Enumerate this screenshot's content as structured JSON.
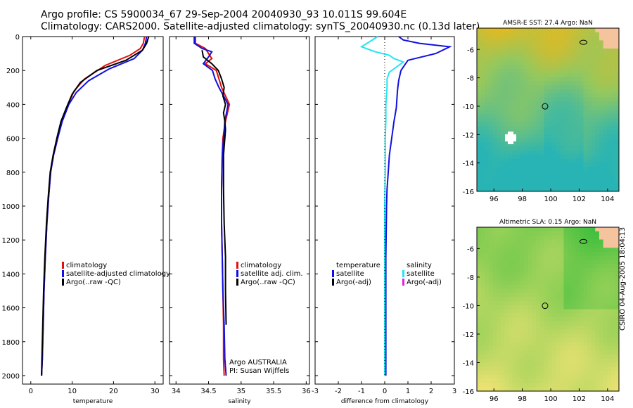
{
  "title_line1": "Argo profile: CS 5900034_67 29-Sep-2004 20040930_93 10.011S 99.604E",
  "title_line2": "Climatology: CARS2000. Satellite-adjusted climatology: synTS_20040930.nc (0.13d later)",
  "stamp": "CSIRO 04-Aug-2005 18:04:13",
  "colors": {
    "climatology": "#e01010",
    "satellite": "#1010e0",
    "argo": "#000000",
    "sal_diff": "#22e6f0",
    "argo_adj_sal": "#e020e0"
  },
  "chart_data": [
    {
      "type": "line",
      "name": "temperature",
      "xlabel": "temperature",
      "xlim": [
        -2,
        32
      ],
      "ylim": [
        0,
        2050
      ],
      "xticks": [
        0,
        10,
        20,
        30
      ],
      "yticks": [
        0,
        200,
        400,
        600,
        800,
        1000,
        1200,
        1400,
        1600,
        1800,
        2000
      ],
      "legend": [
        "climatology",
        "satellite-adjusted climatology",
        "Argo(..raw -QC)"
      ],
      "series": [
        {
          "name": "climatology",
          "color": "climatology",
          "x": [
            27.5,
            27.2,
            26.5,
            24,
            18,
            13,
            10.5,
            9,
            7.5,
            6.5,
            5.5,
            4.8,
            4.3,
            3.9,
            3.5,
            3.2,
            3.0,
            2.8,
            2.6
          ],
          "y": [
            0,
            40,
            70,
            110,
            170,
            250,
            320,
            400,
            500,
            600,
            700,
            800,
            950,
            1100,
            1300,
            1500,
            1700,
            1900,
            2000
          ]
        },
        {
          "name": "satellite-adjusted climatology",
          "color": "satellite",
          "x": [
            28,
            27.7,
            27,
            25,
            19,
            14,
            11,
            9.2,
            7.6,
            6.5,
            5.5,
            4.8,
            4.3,
            3.9,
            3.5,
            3.2,
            3.0,
            2.8,
            2.6
          ],
          "y": [
            0,
            40,
            80,
            130,
            190,
            260,
            330,
            400,
            500,
            600,
            700,
            800,
            950,
            1100,
            1300,
            1500,
            1700,
            1900,
            2000
          ]
        },
        {
          "name": "Argo(..raw -QC)",
          "color": "argo",
          "x": [
            28.5,
            28,
            27,
            23,
            16,
            12,
            10,
            8.6,
            7.3,
            6.3,
            5.4,
            4.7,
            4.2,
            3.8,
            3.4,
            3.1,
            2.9,
            2.7,
            2.6
          ],
          "y": [
            0,
            40,
            80,
            140,
            200,
            270,
            340,
            420,
            500,
            600,
            700,
            800,
            950,
            1100,
            1300,
            1500,
            1700,
            1900,
            2000
          ]
        }
      ]
    },
    {
      "type": "line",
      "name": "salinity",
      "xlabel": "salinity",
      "xlim": [
        33.9,
        36.05
      ],
      "ylim": [
        0,
        2050
      ],
      "xticks": [
        34,
        34.5,
        35,
        35.5,
        36
      ],
      "xtick_labels": [
        "34",
        "34.5",
        "35",
        "35.5",
        "36"
      ],
      "legend": [
        "climatology",
        "satellite adj. clim.",
        "Argo(..raw -QC)"
      ],
      "annotation": [
        "Argo AUSTRALIA",
        "PI: Susan Wijffels"
      ],
      "series": [
        {
          "name": "climatology",
          "color": "climatology",
          "x": [
            34.3,
            34.3,
            34.45,
            34.5,
            34.55,
            34.45,
            34.62,
            34.66,
            34.7,
            34.82,
            34.76,
            34.72,
            34.71,
            34.7,
            34.7,
            34.71,
            34.72,
            34.73,
            34.73,
            34.74
          ],
          "y": [
            0,
            40,
            70,
            100,
            130,
            160,
            200,
            250,
            300,
            400,
            500,
            600,
            700,
            900,
            1100,
            1300,
            1500,
            1700,
            1900,
            2000
          ]
        },
        {
          "name": "satellite adj. clim.",
          "color": "satellite",
          "x": [
            34.28,
            34.28,
            34.4,
            34.55,
            34.5,
            34.42,
            34.56,
            34.6,
            34.66,
            34.8,
            34.75,
            34.73,
            34.71,
            34.7,
            34.7,
            34.71,
            34.72,
            34.74,
            34.75,
            34.77
          ],
          "y": [
            0,
            40,
            70,
            90,
            120,
            160,
            200,
            250,
            300,
            400,
            500,
            600,
            700,
            900,
            1100,
            1300,
            1500,
            1700,
            1900,
            2000
          ]
        },
        {
          "name": "Argo(..raw -QC)",
          "color": "argo",
          "x": [
            34.4,
            34.42,
            34.55,
            34.65,
            34.7,
            34.74,
            34.72,
            34.76,
            34.73,
            34.75,
            34.76,
            34.75,
            34.74,
            34.73,
            34.73,
            34.74,
            34.76,
            34.76,
            34.77
          ],
          "y": [
            80,
            120,
            160,
            200,
            250,
            300,
            350,
            400,
            450,
            500,
            550,
            600,
            650,
            700,
            900,
            1100,
            1300,
            1500,
            1700
          ]
        }
      ]
    },
    {
      "type": "line",
      "name": "difference",
      "xlabel": "difference from climatology",
      "xlim": [
        -3,
        3
      ],
      "ylim": [
        0,
        2050
      ],
      "xticks": [
        -3,
        -2,
        -1,
        0,
        1,
        2,
        3
      ],
      "legend_left": [
        "temperature",
        "satellite",
        "Argo(-adj)"
      ],
      "legend_right": [
        "salinity",
        "satellite",
        "Argo(-adj)"
      ],
      "series": [
        {
          "name": "temperature satellite",
          "color": "satellite",
          "x": [
            0.6,
            0.8,
            1.5,
            2.8,
            2.2,
            1.0,
            0.7,
            0.6,
            0.55,
            0.5,
            0.4,
            0.3,
            0.2,
            0.15,
            0.1,
            0.08,
            0.05,
            0.05,
            0.05
          ],
          "y": [
            0,
            20,
            40,
            60,
            100,
            140,
            200,
            260,
            320,
            420,
            500,
            600,
            700,
            800,
            900,
            1000,
            1300,
            1600,
            2000
          ]
        },
        {
          "name": "salinity satellite",
          "color": "sal_diff",
          "x": [
            -0.3,
            -1.0,
            -0.4,
            0.2,
            0.4,
            0.8,
            0.5,
            0.2,
            0.1,
            0.1,
            0.05,
            0.05,
            0.02,
            0.02,
            0.02,
            0.0,
            0.0,
            0.0,
            0.0
          ],
          "y": [
            0,
            60,
            90,
            110,
            130,
            150,
            180,
            210,
            250,
            300,
            400,
            500,
            600,
            700,
            800,
            1000,
            1300,
            1600,
            2000
          ]
        },
        {
          "name": "zero line",
          "color": "argo",
          "x": [
            0,
            0
          ],
          "y": [
            0,
            2000
          ]
        }
      ]
    },
    {
      "type": "heatmap",
      "name": "sst_map",
      "title": "AMSR-E SST: 27.4 Argo: NaN",
      "xticks": [
        96,
        98,
        100,
        102,
        104
      ],
      "yticks": [
        -6,
        -8,
        -10,
        -12,
        -14,
        -16
      ]
    },
    {
      "type": "heatmap",
      "name": "sla_map",
      "title": "Altimetric SLA: 0.15 Argo: NaN",
      "xticks": [
        96,
        98,
        100,
        102,
        104
      ],
      "yticks": [
        -6,
        -8,
        -10,
        -12,
        -14,
        -16
      ]
    }
  ]
}
